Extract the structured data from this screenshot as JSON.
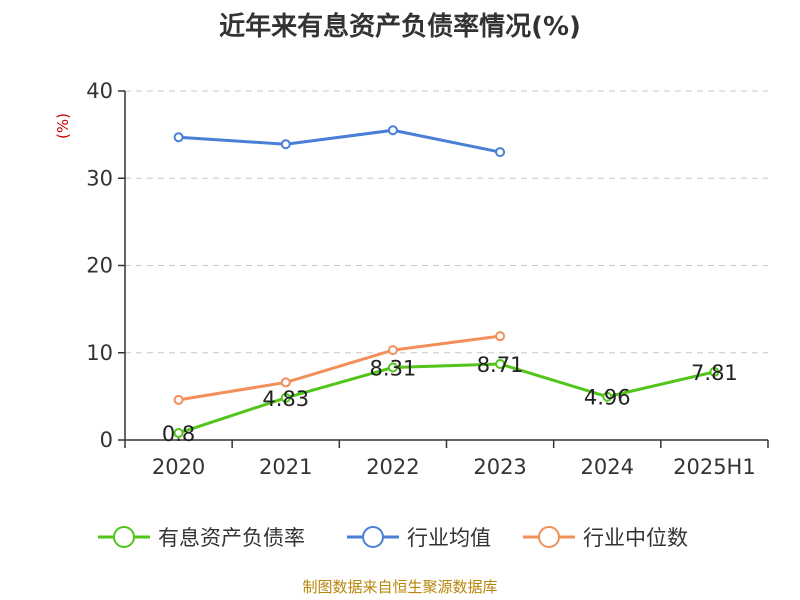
{
  "chart_data": {
    "type": "line",
    "title": "近年来有息资产负债率情况(%)",
    "unit_label": "(%)",
    "categories": [
      "2020",
      "2021",
      "2022",
      "2023",
      "2024",
      "2025H1"
    ],
    "ylim": [
      0,
      40
    ],
    "yticks": [
      0,
      10,
      20,
      30,
      40
    ],
    "grid": true,
    "legend_position": "bottom",
    "series": [
      {
        "name": "有息资产负债率",
        "color": "#52c41a",
        "values": [
          0.8,
          4.83,
          8.31,
          8.71,
          4.96,
          7.81
        ],
        "labels": [
          "0.8",
          "4.83",
          "8.31",
          "8.71",
          "4.96",
          "7.81"
        ]
      },
      {
        "name": "行业均值",
        "color": "#4a7fd8",
        "values": [
          34.7,
          33.9,
          35.5,
          33.0,
          null,
          null
        ]
      },
      {
        "name": "行业中位数",
        "color": "#f28f5a",
        "values": [
          4.6,
          6.6,
          10.3,
          11.9,
          null,
          null
        ]
      }
    ]
  },
  "source": "制图数据来自恒生聚源数据库"
}
